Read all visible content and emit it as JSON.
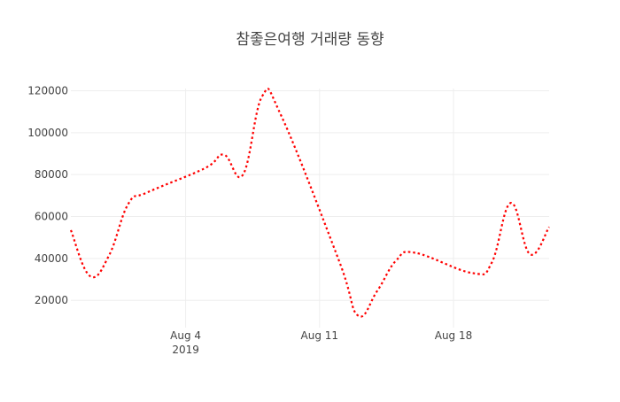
{
  "chart_data": {
    "type": "line",
    "title": "참좋은여행 거래량 동향",
    "xlabel": "",
    "ylabel": "",
    "line_color": "#ff0000",
    "line_style": "dotted spline",
    "grid": true,
    "x": [
      "2019-07-29",
      "2019-07-30",
      "2019-07-31",
      "2019-08-01",
      "2019-08-02",
      "2019-08-05",
      "2019-08-06",
      "2019-08-07",
      "2019-08-08",
      "2019-08-09",
      "2019-08-12",
      "2019-08-13",
      "2019-08-14",
      "2019-08-15",
      "2019-08-16",
      "2019-08-19",
      "2019-08-20",
      "2019-08-21",
      "2019-08-22",
      "2019-08-23"
    ],
    "series": [
      {
        "name": "거래량",
        "values": [
          53500,
          31600,
          41500,
          66000,
          71500,
          83000,
          89500,
          80000,
          117400,
          108000,
          39300,
          12800,
          24300,
          39000,
          42700,
          33000,
          38000,
          66500,
          42000,
          55000
        ]
      }
    ],
    "xlim": [
      "2019-07-29",
      "2019-08-23"
    ],
    "ylim": [
      7000,
      124000
    ],
    "y_ticks": [
      20000,
      40000,
      60000,
      80000,
      100000,
      120000
    ],
    "y_tick_labels": [
      "20000",
      "40000",
      "60000",
      "80000",
      "100000",
      "120000"
    ],
    "x_ticks": [
      "2019-08-04",
      "2019-08-11",
      "2019-08-18"
    ],
    "x_tick_labels": [
      "Aug 4",
      "Aug 11",
      "Aug 18"
    ],
    "x_tick_sublabel": "2019"
  }
}
